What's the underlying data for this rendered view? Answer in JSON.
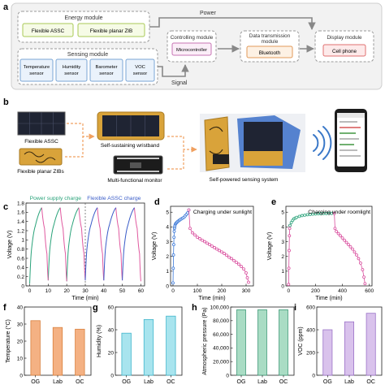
{
  "panel_a": {
    "letter": "a",
    "power_label": "Power",
    "signal_label": "Signal",
    "energy_module": {
      "title": "Energy module",
      "items": [
        "Flexible ASSC",
        "Flexible planar ZIB"
      ]
    },
    "sensing_module": {
      "title": "Sensing module",
      "items": [
        [
          "Temperature",
          "sensor"
        ],
        [
          "Humidity",
          "sensor"
        ],
        [
          "Barometer",
          "sensor"
        ],
        [
          "VOC",
          "sensor"
        ]
      ]
    },
    "controlling_module": {
      "title": "Controlling module",
      "item": "Microcontroller"
    },
    "data_module": {
      "title": [
        "Data transmission",
        "module"
      ],
      "item": "Bluetooth"
    },
    "display_module": {
      "title": "Display module",
      "item": "Cell phone"
    }
  },
  "panel_b": {
    "letter": "b",
    "labels": {
      "assc": "Flexible ASSC",
      "zib": "Flexible planar ZIBs",
      "wristband": "Self-sustaining wristband",
      "monitor": "Multi-functional monitor",
      "system": "Self-powered sensing system"
    },
    "colors": {
      "arrow": "#f0a060",
      "solar": "#1f2433",
      "gold": "#d9a33a",
      "wifi": "#3a78c8"
    }
  },
  "chart_data": [
    {
      "panel": "c",
      "type": "line",
      "title": "",
      "xlabel": "Time (min)",
      "ylabel": "Voltage (V)",
      "xlim": [
        -2,
        62
      ],
      "ylim": [
        0,
        1.8
      ],
      "xticks": [
        0,
        10,
        20,
        30,
        40,
        50,
        60
      ],
      "yticks": [
        0.0,
        0.2,
        0.4,
        0.6,
        0.8,
        1.0,
        1.2,
        1.4,
        1.6,
        1.8
      ],
      "annotations": [
        "Power supply charge",
        "Flexible ASSC charge"
      ],
      "divider_x": 30,
      "series": [
        {
          "color": "#2aa37a",
          "segments": [
            [
              [
                0,
                0.05
              ],
              [
                1,
                0.8
              ],
              [
                3,
                1.3
              ],
              [
                6.5,
                1.7
              ]
            ],
            [
              [
                10,
                0.12
              ],
              [
                11,
                0.85
              ],
              [
                13,
                1.32
              ],
              [
                16.5,
                1.7
              ]
            ],
            [
              [
                20,
                0.1
              ],
              [
                21,
                0.85
              ],
              [
                23,
                1.33
              ],
              [
                26.5,
                1.7
              ]
            ]
          ]
        },
        {
          "color": "#e05aa0",
          "segments": [
            [
              [
                6.5,
                1.7
              ],
              [
                8,
                1.25
              ],
              [
                9.3,
                0.7
              ],
              [
                10,
                0.12
              ]
            ],
            [
              [
                16.5,
                1.7
              ],
              [
                18,
                1.25
              ],
              [
                19.3,
                0.7
              ],
              [
                20,
                0.1
              ]
            ],
            [
              [
                26.5,
                1.7
              ],
              [
                28,
                1.25
              ],
              [
                29.3,
                0.7
              ],
              [
                30,
                0.12
              ]
            ],
            [
              [
                36.5,
                1.7
              ],
              [
                38,
                1.25
              ],
              [
                39.3,
                0.7
              ],
              [
                40,
                0.12
              ]
            ],
            [
              [
                46.5,
                1.7
              ],
              [
                48,
                1.25
              ],
              [
                49.3,
                0.7
              ],
              [
                50,
                0.12
              ]
            ],
            [
              [
                56.5,
                1.7
              ],
              [
                58,
                1.25
              ],
              [
                59.3,
                0.7
              ],
              [
                60,
                0.1
              ]
            ]
          ]
        },
        {
          "color": "#3a5cc8",
          "segments": [
            [
              [
                30,
                0.12
              ],
              [
                31,
                0.85
              ],
              [
                33,
                1.32
              ],
              [
                36.5,
                1.7
              ]
            ],
            [
              [
                40,
                0.12
              ],
              [
                41,
                0.85
              ],
              [
                43,
                1.32
              ],
              [
                46.5,
                1.7
              ]
            ],
            [
              [
                50,
                0.12
              ],
              [
                51,
                0.85
              ],
              [
                53,
                1.32
              ],
              [
                56.5,
                1.7
              ]
            ]
          ]
        }
      ]
    },
    {
      "panel": "d",
      "type": "scatter",
      "title": "",
      "xlabel": "Time (min)",
      "ylabel": "Voltage (V)",
      "xlim": [
        -10,
        330
      ],
      "ylim": [
        0,
        5.4
      ],
      "xticks": [
        0,
        100,
        200,
        300
      ],
      "yticks": [
        0,
        1,
        2,
        3,
        4,
        5
      ],
      "annotations": [
        "Charging under sunlight"
      ],
      "series": [
        {
          "color": "#3a78d8",
          "x": [
            0,
            1,
            2,
            3,
            4,
            5,
            6,
            7,
            8,
            10,
            12,
            15,
            18,
            22,
            26,
            30,
            35,
            40,
            45,
            50,
            55,
            60,
            65
          ],
          "y": [
            0.2,
            1.2,
            2.1,
            2.8,
            3.3,
            3.7,
            3.9,
            4.0,
            4.1,
            4.2,
            4.25,
            4.3,
            4.35,
            4.4,
            4.45,
            4.5,
            4.55,
            4.6,
            4.65,
            4.75,
            4.85,
            4.95,
            5.15
          ]
        },
        {
          "color": "#d94e9e",
          "x": [
            65,
            70,
            80,
            90,
            100,
            110,
            120,
            130,
            140,
            150,
            160,
            170,
            180,
            190,
            200,
            210,
            220,
            230,
            240,
            250,
            260,
            270,
            280,
            290,
            300,
            305,
            310
          ],
          "y": [
            5.15,
            3.9,
            3.6,
            3.45,
            3.3,
            3.2,
            3.1,
            3.0,
            2.9,
            2.8,
            2.7,
            2.6,
            2.5,
            2.4,
            2.3,
            2.2,
            2.08,
            1.95,
            1.85,
            1.72,
            1.6,
            1.47,
            1.32,
            1.15,
            0.88,
            0.55,
            0.25
          ]
        }
      ]
    },
    {
      "panel": "e",
      "type": "scatter",
      "title": "",
      "xlabel": "Time (min)",
      "ylabel": "Voltage (V)",
      "xlim": [
        -20,
        620
      ],
      "ylim": [
        0,
        5.4
      ],
      "xticks": [
        0,
        200,
        400,
        600
      ],
      "yticks": [
        0,
        1,
        2,
        3,
        4,
        5
      ],
      "annotations": [
        "Charging under roomlight"
      ],
      "series": [
        {
          "color": "#d94e9e",
          "x": [
            0,
            2,
            4,
            6,
            8,
            10
          ],
          "y": [
            0.1,
            1.2,
            2.4,
            3.4,
            3.9,
            4.1
          ]
        },
        {
          "color": "#2aa37a",
          "x": [
            10,
            20,
            30,
            40,
            50,
            60,
            80,
            100,
            120,
            140,
            160,
            180,
            200,
            220,
            240,
            260,
            280,
            300,
            320,
            340
          ],
          "y": [
            4.1,
            4.3,
            4.45,
            4.55,
            4.6,
            4.65,
            4.72,
            4.77,
            4.8,
            4.83,
            4.85,
            4.87,
            4.88,
            4.9,
            4.9,
            4.91,
            4.91,
            4.92,
            4.92,
            4.92
          ]
        },
        {
          "color": "#d94e9e",
          "x": [
            340,
            345,
            355,
            370,
            385,
            400,
            415,
            430,
            445,
            460,
            475,
            490,
            505,
            520,
            535,
            550,
            560,
            568
          ],
          "y": [
            4.92,
            3.9,
            3.7,
            3.55,
            3.4,
            3.25,
            3.1,
            2.95,
            2.8,
            2.65,
            2.5,
            2.3,
            2.1,
            1.85,
            1.55,
            1.1,
            0.6,
            0.15
          ]
        }
      ]
    },
    {
      "panel": "f",
      "type": "bar",
      "title": "",
      "xlabel": "",
      "ylabel": "Temperature (°C)",
      "categories": [
        "OG",
        "Lab",
        "OC"
      ],
      "values": [
        32,
        28,
        27
      ],
      "ylim": [
        0,
        40
      ],
      "yticks": [
        0,
        10,
        20,
        30,
        40
      ],
      "color": "#f4b183",
      "edge": "#d9803c"
    },
    {
      "panel": "g",
      "type": "bar",
      "title": "",
      "xlabel": "",
      "ylabel": "Humidity (%)",
      "categories": [
        "OG",
        "Lab",
        "OC"
      ],
      "values": [
        37,
        49,
        52
      ],
      "ylim": [
        0,
        60
      ],
      "yticks": [
        0,
        20,
        40,
        60
      ],
      "color": "#a8e4ee",
      "edge": "#42b6cc"
    },
    {
      "panel": "h",
      "type": "bar",
      "title": "",
      "xlabel": "",
      "ylabel": "Atmospheric pressure (Pa)",
      "categories": [
        "OG",
        "Lab",
        "OC"
      ],
      "values": [
        96000,
        96000,
        96000
      ],
      "ylim": [
        0,
        100000
      ],
      "yticks": [
        0,
        20000,
        40000,
        60000,
        80000,
        100000
      ],
      "ytick_labels": [
        "0",
        "20,000",
        "40,000",
        "60,000",
        "80,000",
        "100,000"
      ],
      "color": "#a9dcc4",
      "edge": "#3f9a78"
    },
    {
      "panel": "i",
      "type": "bar",
      "title": "",
      "xlabel": "",
      "ylabel": "VOC (ppm)",
      "categories": [
        "OG",
        "Lab",
        "OC"
      ],
      "values": [
        400,
        470,
        545
      ],
      "ylim": [
        0,
        600
      ],
      "yticks": [
        0,
        200,
        400,
        600
      ],
      "color": "#d9c2ec",
      "edge": "#9b72c8"
    }
  ]
}
